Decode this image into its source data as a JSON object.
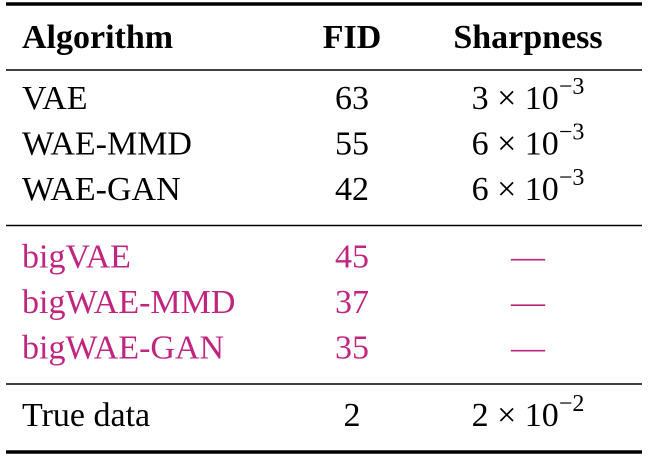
{
  "table": {
    "header": [
      "Algorithm",
      "FID",
      "Sharpness"
    ],
    "groups": [
      {
        "color": "#000000",
        "rows": [
          [
            "VAE",
            63,
            {
              "base": "3 × 10",
              "exponent": "−3"
            }
          ],
          [
            "WAE-MMD",
            55,
            {
              "base": "6 × 10",
              "exponent": "−3"
            }
          ],
          [
            "WAE-GAN",
            42,
            {
              "base": "6 × 10",
              "exponent": "−3"
            }
          ]
        ]
      },
      {
        "color": "#c0267f",
        "rows": [
          [
            "bigVAE",
            45,
            "—"
          ],
          [
            "bigWAE-MMD",
            37,
            "—"
          ],
          [
            "bigWAE-GAN",
            35,
            "—"
          ]
        ]
      },
      {
        "color": "#000000",
        "rows": [
          [
            "True data",
            2,
            {
              "base": "2 × 10",
              "exponent": "−2"
            }
          ]
        ]
      }
    ]
  }
}
